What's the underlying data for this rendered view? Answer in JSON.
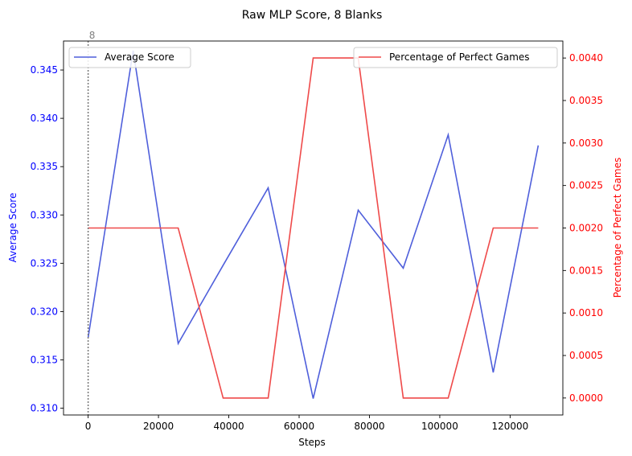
{
  "chart_data": {
    "type": "line",
    "title": "Raw MLP Score, 8 Blanks",
    "xlabel": "Steps",
    "ylabel_left": "Average Score",
    "ylabel_right": "Percentage of Perfect Games",
    "xlim": [
      -7000,
      135000
    ],
    "ylim_left": [
      0.3093,
      0.348
    ],
    "ylim_right": [
      -0.0002,
      0.0042
    ],
    "x_ticks": [
      0,
      20000,
      40000,
      60000,
      80000,
      100000,
      120000
    ],
    "y_ticks_left": [
      0.31,
      0.315,
      0.32,
      0.325,
      0.33,
      0.335,
      0.34,
      0.345
    ],
    "y_ticks_left_labels": [
      "0.310",
      "0.315",
      "0.320",
      "0.325",
      "0.330",
      "0.335",
      "0.340",
      "0.345"
    ],
    "y_ticks_right": [
      0.0,
      0.0005,
      0.001,
      0.0015,
      0.002,
      0.0025,
      0.003,
      0.0035,
      0.004
    ],
    "y_ticks_right_labels": [
      "0.0000",
      "0.0005",
      "0.0010",
      "0.0015",
      "0.0020",
      "0.0025",
      "0.0030",
      "0.0035",
      "0.0040"
    ],
    "x": [
      0,
      12800,
      25600,
      38400,
      51200,
      64000,
      76800,
      89600,
      102400,
      115200,
      128000
    ],
    "series": [
      {
        "name": "Average Score",
        "axis": "left",
        "color": "#4f5fdb",
        "values": [
          0.3173,
          0.347,
          0.3167,
          0.3248,
          0.3328,
          0.311,
          0.3305,
          0.3245,
          0.3383,
          0.3137,
          0.3372
        ]
      },
      {
        "name": "Percentage of Perfect Games",
        "axis": "right",
        "color": "#ef4a4a",
        "values": [
          0.002,
          0.002,
          0.002,
          0.0,
          0.0,
          0.004,
          0.004,
          0.0,
          0.0,
          0.002,
          0.002
        ]
      }
    ],
    "annotation": {
      "x": 0,
      "label": "8"
    },
    "left_axis_color": "#0000ff",
    "right_axis_color": "#ff0000",
    "legend_left_position": "upper-left",
    "legend_right_position": "upper-right",
    "grid": false
  }
}
